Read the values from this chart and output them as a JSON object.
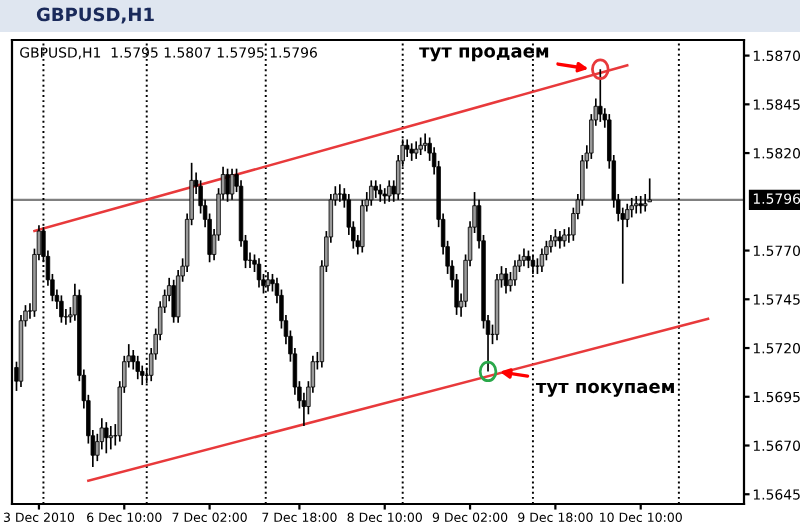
{
  "chart_data": {
    "type": "candlestick",
    "title": "GBPUSD,H1",
    "subtitle": "GBPUSD,H1  1.5795 1.5807 1.5795 1.5796",
    "categories": [
      null,
      null,
      null,
      null,
      null,
      "3 Dec 2010",
      null,
      null,
      null,
      null,
      null,
      null,
      null,
      null,
      null,
      null,
      null,
      null,
      null,
      null,
      null,
      null,
      null,
      null,
      "6 Dec 10:00",
      null,
      null,
      null,
      null,
      null,
      null,
      null,
      null,
      null,
      null,
      null,
      null,
      null,
      null,
      null,
      null,
      null,
      null,
      "7 Dec 02:00",
      null,
      null,
      null,
      null,
      null,
      null,
      null,
      null,
      null,
      null,
      null,
      null,
      null,
      null,
      null,
      null,
      null,
      null,
      null,
      "7 Dec 18:00",
      null,
      null,
      null,
      null,
      null,
      null,
      null,
      null,
      null,
      null,
      null,
      null,
      null,
      null,
      null,
      null,
      null,
      null,
      "8 Dec 10:00",
      null,
      null,
      null,
      null,
      null,
      null,
      null,
      null,
      null,
      null,
      null,
      null,
      null,
      null,
      null,
      null,
      null,
      null,
      "9 Dec 02:00",
      null,
      null,
      null,
      null,
      null,
      null,
      null,
      null,
      null,
      null,
      null,
      null,
      null,
      null,
      null,
      null,
      null,
      null,
      "9 Dec 18:00",
      null,
      null,
      null,
      null,
      null,
      null,
      null,
      null,
      null,
      null,
      null,
      null,
      null,
      null,
      null,
      null,
      null,
      null,
      "10 Dec 10:00",
      null,
      null,
      null,
      null,
      null,
      null,
      null,
      null,
      null,
      null,
      null,
      null,
      null,
      null,
      null,
      null,
      null,
      null,
      null,
      null,
      null,
      null
    ],
    "ohlc": [
      [
        1.571,
        1.5713,
        1.5698,
        1.5703
      ],
      [
        1.5703,
        1.5737,
        1.57,
        1.5734
      ],
      [
        1.5734,
        1.5742,
        1.5731,
        1.5739
      ],
      [
        1.5739,
        1.5743,
        1.5735,
        1.5739
      ],
      [
        1.5739,
        1.5771,
        1.5736,
        1.5768
      ],
      [
        1.5768,
        1.5783,
        1.5765,
        1.578
      ],
      [
        1.578,
        1.5782,
        1.5764,
        1.5767
      ],
      [
        1.5767,
        1.577,
        1.5752,
        1.5755
      ],
      [
        1.5755,
        1.5758,
        1.5744,
        1.5747
      ],
      [
        1.5747,
        1.575,
        1.574,
        1.5744
      ],
      [
        1.5744,
        1.5747,
        1.5733,
        1.5736
      ],
      [
        1.5736,
        1.574,
        1.5732,
        1.5736
      ],
      [
        1.5736,
        1.5741,
        1.5733,
        1.5737
      ],
      [
        1.5737,
        1.5753,
        1.5734,
        1.5747
      ],
      [
        1.5747,
        1.575,
        1.5703,
        1.5706
      ],
      [
        1.5706,
        1.5709,
        1.5689,
        1.5693
      ],
      [
        1.5693,
        1.5696,
        1.5671,
        1.5675
      ],
      [
        1.5675,
        1.5678,
        1.5659,
        1.5665
      ],
      [
        1.5665,
        1.5676,
        1.5662,
        1.5672
      ],
      [
        1.5672,
        1.5684,
        1.5668,
        1.5679
      ],
      [
        1.5679,
        1.5682,
        1.5666,
        1.5674
      ],
      [
        1.5674,
        1.568,
        1.5668,
        1.5675
      ],
      [
        1.5675,
        1.5681,
        1.567,
        1.5675
      ],
      [
        1.5675,
        1.5703,
        1.5672,
        1.57
      ],
      [
        1.57,
        1.5716,
        1.5697,
        1.5713
      ],
      [
        1.5713,
        1.5722,
        1.571,
        1.5716
      ],
      [
        1.5716,
        1.5719,
        1.5709,
        1.5713
      ],
      [
        1.5713,
        1.5716,
        1.5704,
        1.5708
      ],
      [
        1.5708,
        1.5711,
        1.5701,
        1.5706
      ],
      [
        1.5706,
        1.571,
        1.5702,
        1.5706
      ],
      [
        1.5706,
        1.572,
        1.5703,
        1.5717
      ],
      [
        1.5717,
        1.573,
        1.5714,
        1.5727
      ],
      [
        1.5727,
        1.5744,
        1.5724,
        1.5741
      ],
      [
        1.5741,
        1.575,
        1.5738,
        1.5747
      ],
      [
        1.5747,
        1.5756,
        1.5744,
        1.5752
      ],
      [
        1.5752,
        1.5755,
        1.5733,
        1.5736
      ],
      [
        1.5736,
        1.576,
        1.5733,
        1.5757
      ],
      [
        1.5757,
        1.5766,
        1.5754,
        1.5762
      ],
      [
        1.5762,
        1.5789,
        1.5759,
        1.5786
      ],
      [
        1.5786,
        1.5815,
        1.5783,
        1.5806
      ],
      [
        1.5806,
        1.581,
        1.5799,
        1.5803
      ],
      [
        1.5803,
        1.5806,
        1.5789,
        1.5793
      ],
      [
        1.5793,
        1.5796,
        1.5782,
        1.5786
      ],
      [
        1.5786,
        1.5789,
        1.5764,
        1.5768
      ],
      [
        1.5768,
        1.5781,
        1.5765,
        1.5778
      ],
      [
        1.5778,
        1.5802,
        1.5775,
        1.5799
      ],
      [
        1.5799,
        1.5813,
        1.5796,
        1.5809
      ],
      [
        1.5809,
        1.5812,
        1.5795,
        1.5799
      ],
      [
        1.5799,
        1.5812,
        1.5796,
        1.5809
      ],
      [
        1.5809,
        1.5812,
        1.58,
        1.5803
      ],
      [
        1.5803,
        1.5806,
        1.5772,
        1.5775
      ],
      [
        1.5775,
        1.5778,
        1.5761,
        1.5765
      ],
      [
        1.5765,
        1.5769,
        1.5761,
        1.5765
      ],
      [
        1.5765,
        1.5768,
        1.5759,
        1.5763
      ],
      [
        1.5763,
        1.5766,
        1.5751,
        1.5755
      ],
      [
        1.5755,
        1.5758,
        1.5748,
        1.5752
      ],
      [
        1.5752,
        1.5759,
        1.5749,
        1.5755
      ],
      [
        1.5755,
        1.5758,
        1.5749,
        1.5753
      ],
      [
        1.5753,
        1.5756,
        1.5743,
        1.5747
      ],
      [
        1.5747,
        1.575,
        1.573,
        1.5734
      ],
      [
        1.5734,
        1.5737,
        1.5722,
        1.5726
      ],
      [
        1.5726,
        1.5729,
        1.5713,
        1.5717
      ],
      [
        1.5717,
        1.572,
        1.5696,
        1.57
      ],
      [
        1.57,
        1.5703,
        1.5689,
        1.5693
      ],
      [
        1.5693,
        1.5697,
        1.568,
        1.569
      ],
      [
        1.569,
        1.5703,
        1.5686,
        1.57
      ],
      [
        1.57,
        1.5716,
        1.5697,
        1.5713
      ],
      [
        1.5713,
        1.5718,
        1.5709,
        1.5713
      ],
      [
        1.5713,
        1.5765,
        1.571,
        1.5762
      ],
      [
        1.5762,
        1.578,
        1.5759,
        1.5777
      ],
      [
        1.5777,
        1.5799,
        1.5774,
        1.5796
      ],
      [
        1.5796,
        1.5803,
        1.5793,
        1.5799
      ],
      [
        1.5799,
        1.5804,
        1.5795,
        1.5799
      ],
      [
        1.5799,
        1.5802,
        1.5792,
        1.5796
      ],
      [
        1.5796,
        1.5799,
        1.5778,
        1.5782
      ],
      [
        1.5782,
        1.5785,
        1.5771,
        1.5775
      ],
      [
        1.5775,
        1.5778,
        1.5768,
        1.5772
      ],
      [
        1.5772,
        1.5796,
        1.5769,
        1.5793
      ],
      [
        1.5793,
        1.58,
        1.579,
        1.5796
      ],
      [
        1.5796,
        1.5806,
        1.5793,
        1.5803
      ],
      [
        1.5803,
        1.5806,
        1.5797,
        1.5801
      ],
      [
        1.5801,
        1.5804,
        1.5795,
        1.5799
      ],
      [
        1.5799,
        1.5802,
        1.5794,
        1.5798
      ],
      [
        1.5798,
        1.5806,
        1.5795,
        1.5803
      ],
      [
        1.5803,
        1.5806,
        1.5795,
        1.5799
      ],
      [
        1.5799,
        1.5819,
        1.5796,
        1.5816
      ],
      [
        1.5816,
        1.5827,
        1.5813,
        1.5824
      ],
      [
        1.5824,
        1.5827,
        1.5818,
        1.5822
      ],
      [
        1.5822,
        1.5825,
        1.5816,
        1.582
      ],
      [
        1.582,
        1.5826,
        1.5817,
        1.5822
      ],
      [
        1.5822,
        1.5828,
        1.5819,
        1.5824
      ],
      [
        1.5824,
        1.583,
        1.5821,
        1.5825
      ],
      [
        1.5825,
        1.5828,
        1.5816,
        1.582
      ],
      [
        1.582,
        1.5823,
        1.5809,
        1.5813
      ],
      [
        1.5813,
        1.5816,
        1.5782,
        1.5786
      ],
      [
        1.5786,
        1.5789,
        1.5768,
        1.5772
      ],
      [
        1.5772,
        1.5775,
        1.5758,
        1.5762
      ],
      [
        1.5762,
        1.5765,
        1.5751,
        1.5755
      ],
      [
        1.5755,
        1.5758,
        1.5737,
        1.5741
      ],
      [
        1.5741,
        1.5748,
        1.5736,
        1.5744
      ],
      [
        1.5744,
        1.5768,
        1.5741,
        1.5765
      ],
      [
        1.5765,
        1.5785,
        1.5762,
        1.5782
      ],
      [
        1.5782,
        1.58,
        1.5779,
        1.5793
      ],
      [
        1.5793,
        1.5796,
        1.5771,
        1.5775
      ],
      [
        1.5775,
        1.5778,
        1.573,
        1.5734
      ],
      [
        1.5734,
        1.5737,
        1.5708,
        1.5727
      ],
      [
        1.5727,
        1.5732,
        1.5722,
        1.5727
      ],
      [
        1.5727,
        1.5758,
        1.5724,
        1.5755
      ],
      [
        1.5755,
        1.5762,
        1.5751,
        1.5758
      ],
      [
        1.5758,
        1.5761,
        1.5748,
        1.5752
      ],
      [
        1.5752,
        1.5759,
        1.5749,
        1.5755
      ],
      [
        1.5755,
        1.5765,
        1.5752,
        1.5762
      ],
      [
        1.5762,
        1.5768,
        1.5759,
        1.5765
      ],
      [
        1.5765,
        1.5771,
        1.5762,
        1.5767
      ],
      [
        1.5767,
        1.577,
        1.5761,
        1.5765
      ],
      [
        1.5765,
        1.5768,
        1.5758,
        1.5762
      ],
      [
        1.5762,
        1.5766,
        1.5758,
        1.5762
      ],
      [
        1.5762,
        1.5771,
        1.5759,
        1.5768
      ],
      [
        1.5768,
        1.5775,
        1.5765,
        1.5772
      ],
      [
        1.5772,
        1.5778,
        1.5769,
        1.5775
      ],
      [
        1.5775,
        1.5781,
        1.5772,
        1.5777
      ],
      [
        1.5777,
        1.578,
        1.5771,
        1.5775
      ],
      [
        1.5775,
        1.5781,
        1.5772,
        1.5778
      ],
      [
        1.5778,
        1.5782,
        1.5774,
        1.5778
      ],
      [
        1.5778,
        1.5792,
        1.5775,
        1.5789
      ],
      [
        1.5789,
        1.5799,
        1.5786,
        1.5796
      ],
      [
        1.5796,
        1.5819,
        1.5793,
        1.5816
      ],
      [
        1.5816,
        1.5824,
        1.5812,
        1.582
      ],
      [
        1.582,
        1.584,
        1.5817,
        1.5837
      ],
      [
        1.5837,
        1.5848,
        1.5834,
        1.5844
      ],
      [
        1.5844,
        1.5863,
        1.5836,
        1.584
      ],
      [
        1.584,
        1.5843,
        1.5833,
        1.5837
      ],
      [
        1.5837,
        1.584,
        1.5812,
        1.5816
      ],
      [
        1.5816,
        1.5819,
        1.5792,
        1.5796
      ],
      [
        1.5796,
        1.5799,
        1.5785,
        1.5789
      ],
      [
        1.5789,
        1.5792,
        1.5753,
        1.5786
      ],
      [
        1.5786,
        1.5794,
        1.5782,
        1.5791
      ],
      [
        1.5791,
        1.5797,
        1.5787,
        1.5793
      ],
      [
        1.5793,
        1.5798,
        1.5789,
        1.5794
      ],
      [
        1.5794,
        1.5798,
        1.5789,
        1.5793
      ],
      [
        1.5793,
        1.5799,
        1.579,
        1.5794
      ],
      [
        1.5795,
        1.5807,
        1.5795,
        1.5796
      ],
      null,
      null,
      null,
      null,
      null,
      null,
      null,
      null,
      null,
      null,
      null,
      null,
      null,
      null,
      null,
      null,
      null,
      null,
      null,
      null
    ],
    "series": [
      {
        "type": "line",
        "color": "#e8393b",
        "values": [
          null,
          null,
          null,
          null,
          1.578,
          null,
          null,
          null,
          null,
          null,
          null,
          null,
          null,
          null,
          null,
          null,
          null,
          null,
          null,
          null,
          null,
          null,
          null,
          null,
          null,
          null,
          null,
          null,
          null,
          null,
          null,
          null,
          null,
          null,
          null,
          null,
          null,
          null,
          null,
          null,
          null,
          null,
          null,
          null,
          null,
          null,
          null,
          null,
          null,
          null,
          null,
          null,
          null,
          null,
          null,
          null,
          null,
          null,
          null,
          null,
          null,
          null,
          null,
          null,
          null,
          null,
          null,
          null,
          null,
          null,
          null,
          null,
          null,
          null,
          null,
          null,
          null,
          null,
          null,
          null,
          null,
          null,
          null,
          null,
          null,
          null,
          null,
          null,
          null,
          null,
          null,
          null,
          null,
          null,
          null,
          null,
          null,
          null,
          null,
          null,
          null,
          null,
          null,
          null,
          null,
          null,
          null,
          null,
          null,
          null,
          null,
          null,
          null,
          null,
          null,
          null,
          null,
          null,
          null,
          null,
          null,
          null,
          null,
          null,
          null,
          null,
          null,
          null,
          null,
          null,
          null,
          null,
          null,
          null,
          null,
          null,
          1.5865,
          null,
          null,
          null,
          null,
          null,
          null,
          null,
          null,
          null,
          null,
          null,
          null,
          null,
          null,
          null,
          null,
          null,
          null,
          null,
          null,
          null,
          null,
          null,
          null,
          null
        ]
      },
      {
        "type": "line",
        "color": "#e8393b",
        "values": [
          null,
          null,
          null,
          null,
          null,
          null,
          null,
          null,
          null,
          null,
          null,
          null,
          null,
          null,
          null,
          null,
          1.5652,
          null,
          null,
          null,
          null,
          null,
          null,
          null,
          null,
          null,
          null,
          null,
          null,
          null,
          null,
          null,
          null,
          null,
          null,
          null,
          null,
          null,
          null,
          null,
          null,
          null,
          null,
          null,
          null,
          null,
          null,
          null,
          null,
          null,
          null,
          null,
          null,
          null,
          null,
          null,
          null,
          null,
          null,
          null,
          null,
          null,
          null,
          null,
          null,
          null,
          null,
          null,
          null,
          null,
          null,
          null,
          null,
          null,
          null,
          null,
          null,
          null,
          null,
          null,
          null,
          null,
          null,
          null,
          null,
          null,
          null,
          null,
          null,
          null,
          null,
          null,
          null,
          null,
          null,
          null,
          null,
          null,
          null,
          null,
          null,
          null,
          null,
          null,
          null,
          null,
          null,
          null,
          null,
          null,
          null,
          null,
          null,
          null,
          null,
          null,
          null,
          null,
          null,
          null,
          null,
          null,
          null,
          null,
          null,
          null,
          null,
          null,
          null,
          null,
          null,
          null,
          null,
          null,
          null,
          null,
          null,
          null,
          null,
          null,
          null,
          null,
          null,
          null,
          null,
          null,
          null,
          null,
          null,
          null,
          null,
          null,
          null,
          null,
          1.5735,
          null,
          null,
          null,
          null,
          null,
          null,
          null
        ]
      }
    ],
    "ylim": [
      1.564,
      1.5878
    ],
    "yticks": [
      {
        "value": 1.5645,
        "label": "1.5645"
      },
      {
        "value": 1.567,
        "label": "1.5670"
      },
      {
        "value": 1.5695,
        "label": "1.5695"
      },
      {
        "value": 1.572,
        "label": "1.5720"
      },
      {
        "value": 1.5745,
        "label": "1.5745"
      },
      {
        "value": 1.577,
        "label": "1.5770"
      },
      {
        "value": 1.582,
        "label": "1.5820"
      },
      {
        "value": 1.5845,
        "label": "1.5845"
      },
      {
        "value": 1.587,
        "label": "1.5870"
      }
    ],
    "ref_lines": [
      {
        "axis": "y",
        "value": 1.5796,
        "label": "1.5796",
        "color": "#808080",
        "line_style": "solid"
      }
    ],
    "annotations": [
      "тут продаем",
      "тут покупаем"
    ],
    "grid": false,
    "legend": false
  }
}
